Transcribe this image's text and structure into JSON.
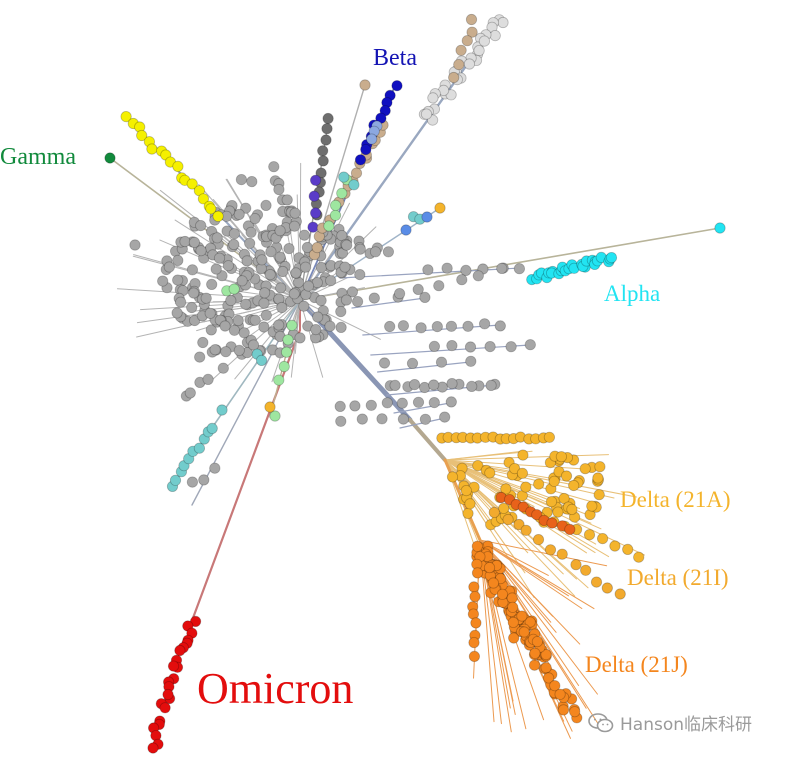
{
  "labels": {
    "beta": "Beta",
    "gamma": "Gamma",
    "alpha": "Alpha",
    "delta_21a": "Delta (21A)",
    "delta_21i": "Delta (21I)",
    "delta_21j": "Delta (21J)",
    "omicron": "Omicron"
  },
  "watermark": {
    "text": "Hanson临床科研",
    "icon": "wechat-icon"
  },
  "colors": {
    "background": "#ffffff",
    "node_default": "#a6a6a6",
    "node_stroke": "#7c7c7c",
    "branch_default": "#8a96b4",
    "beta": "#1414b4",
    "gamma": "#118a3c",
    "gamma_clade": "#f5f000",
    "alpha": "#22e4f2",
    "delta_21a": "#f4b42c",
    "delta_21i": "#f2aa2e",
    "delta_21j": "#f4861e",
    "delta_21j_dark": "#e8621a",
    "omicron": "#e30d0d",
    "omicron_branch": "#c87878",
    "light_green": "#9ee6a0",
    "teal": "#72cccc",
    "tan": "#c9ad8d",
    "light_gray": "#dddddd",
    "dark_gray": "#6e6e6e",
    "indigo": "#5a3cc8",
    "blue": "#5a8ce6"
  }
}
